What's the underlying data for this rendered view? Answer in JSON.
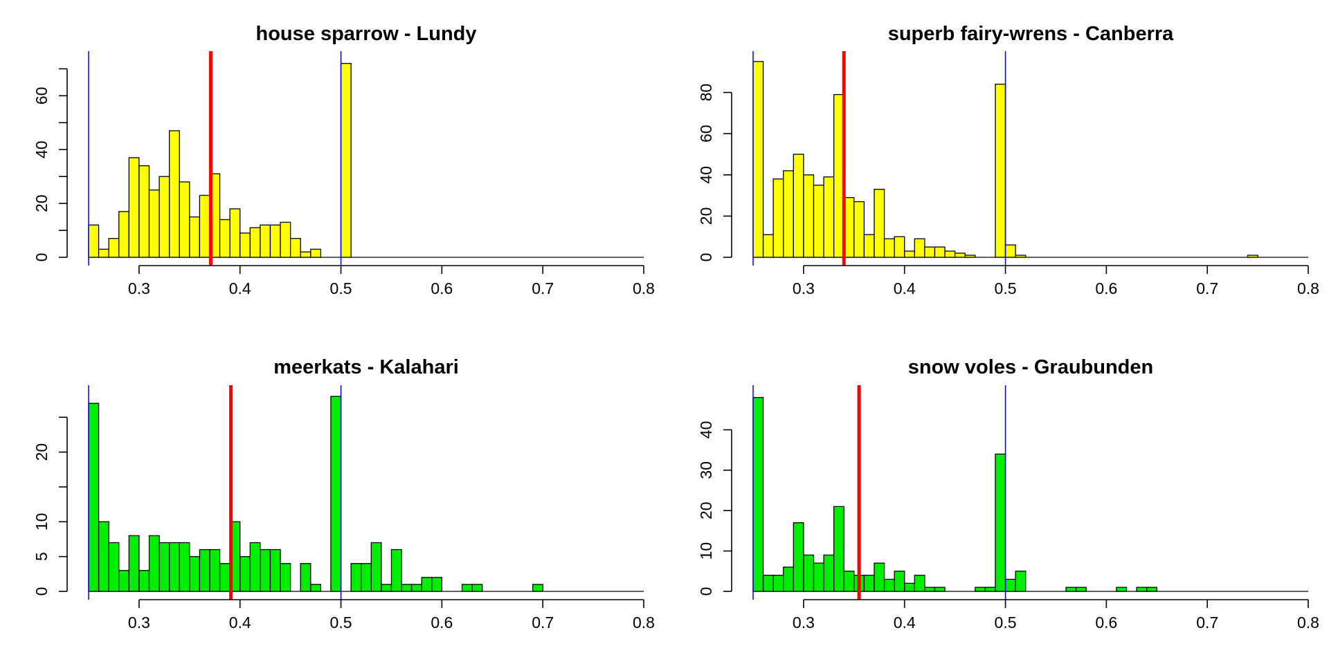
{
  "chart_data": [
    {
      "type": "bar",
      "title": "house sparrow - Lundy",
      "bar_color": "#ffff00",
      "bin_start": 0.25,
      "bin_width": 0.01,
      "values": [
        12,
        3,
        7,
        17,
        37,
        34,
        25,
        30,
        47,
        28,
        15,
        23,
        31,
        14,
        18,
        9,
        11,
        12,
        12,
        13,
        7,
        2,
        3,
        0,
        0,
        72
      ],
      "xlim": [
        0.25,
        0.8
      ],
      "ylim": [
        0,
        75
      ],
      "x_ticks": [
        0.3,
        0.4,
        0.5,
        0.6,
        0.7,
        0.8
      ],
      "x_tick_labels": [
        "0.3",
        "0.4",
        "0.5",
        "0.6",
        "0.7",
        "0.8"
      ],
      "y_ticks": [
        0,
        20,
        40,
        60
      ],
      "y_tick_labels": [
        "0",
        "20",
        "40",
        "60"
      ],
      "y_minor_ticks": [
        10,
        30,
        50,
        70
      ],
      "blue_lines": [
        0.25,
        0.5
      ],
      "blue_line_color": "#0000ff",
      "red_line": 0.371,
      "red_line_color": "#ff0000"
    },
    {
      "type": "bar",
      "title": "superb fairy-wrens - Canberra",
      "bar_color": "#ffff00",
      "bin_start": 0.25,
      "bin_width": 0.01,
      "values": [
        95,
        11,
        38,
        42,
        50,
        40,
        35,
        39,
        79,
        29,
        27,
        11,
        33,
        9,
        10,
        3,
        9,
        5,
        5,
        3,
        2,
        1,
        0,
        0,
        84,
        6,
        1,
        0,
        0,
        0,
        0,
        0,
        0,
        0,
        0,
        0,
        0,
        0,
        0,
        0,
        0,
        0,
        0,
        0,
        0,
        0,
        0,
        0,
        0,
        1
      ],
      "xlim": [
        0.25,
        0.8
      ],
      "ylim": [
        0,
        98
      ],
      "x_ticks": [
        0.3,
        0.4,
        0.5,
        0.6,
        0.7,
        0.8
      ],
      "x_tick_labels": [
        "0.3",
        "0.4",
        "0.5",
        "0.6",
        "0.7",
        "0.8"
      ],
      "y_ticks": [
        0,
        20,
        40,
        60,
        80
      ],
      "y_tick_labels": [
        "0",
        "20",
        "40",
        "60",
        "80"
      ],
      "y_minor_ticks": [],
      "blue_lines": [
        0.25,
        0.5
      ],
      "blue_line_color": "#0000ff",
      "red_line": 0.34,
      "red_line_color": "#ff0000"
    },
    {
      "type": "bar",
      "title": "meerkats - Kalahari",
      "bar_color": "#00ee00",
      "bin_start": 0.25,
      "bin_width": 0.01,
      "values": [
        27,
        10,
        7,
        3,
        8,
        3,
        8,
        7,
        7,
        7,
        5,
        6,
        6,
        4,
        10,
        5,
        7,
        6,
        6,
        4,
        0,
        4,
        1,
        0,
        28,
        0,
        4,
        4,
        7,
        1,
        6,
        1,
        1,
        2,
        2,
        0,
        0,
        1,
        1,
        0,
        0,
        0,
        0,
        0,
        1
      ],
      "xlim": [
        0.25,
        0.8
      ],
      "ylim": [
        0,
        29
      ],
      "x_ticks": [
        0.3,
        0.4,
        0.5,
        0.6,
        0.7,
        0.8
      ],
      "x_tick_labels": [
        "0.3",
        "0.4",
        "0.5",
        "0.6",
        "0.7",
        "0.8"
      ],
      "y_ticks": [
        0,
        5,
        10,
        20
      ],
      "y_tick_labels": [
        "0",
        "5",
        "10",
        "20"
      ],
      "y_minor_ticks": [
        15,
        25
      ],
      "blue_lines": [
        0.25,
        0.5
      ],
      "blue_line_color": "#0000ff",
      "red_line": 0.391,
      "red_line_color": "#ff0000"
    },
    {
      "type": "bar",
      "title": "snow voles - Graubunden",
      "bar_color": "#00ee00",
      "bin_start": 0.25,
      "bin_width": 0.01,
      "values": [
        48,
        4,
        4,
        6,
        17,
        9,
        7,
        9,
        21,
        5,
        4,
        4,
        7,
        3,
        5,
        2,
        4,
        1,
        1,
        0,
        0,
        0,
        1,
        1,
        34,
        3,
        5,
        0,
        0,
        0,
        0,
        1,
        1,
        0,
        0,
        0,
        1,
        0,
        1,
        1
      ],
      "xlim": [
        0.25,
        0.8
      ],
      "ylim": [
        0,
        50
      ],
      "x_ticks": [
        0.3,
        0.4,
        0.5,
        0.6,
        0.7,
        0.8
      ],
      "x_tick_labels": [
        "0.3",
        "0.4",
        "0.5",
        "0.6",
        "0.7",
        "0.8"
      ],
      "y_ticks": [
        0,
        10,
        20,
        30,
        40
      ],
      "y_tick_labels": [
        "0",
        "10",
        "20",
        "30",
        "40"
      ],
      "y_minor_ticks": [],
      "blue_lines": [
        0.25,
        0.5
      ],
      "blue_line_color": "#0000ff",
      "red_line": 0.355,
      "red_line_color": "#ff0000"
    }
  ]
}
